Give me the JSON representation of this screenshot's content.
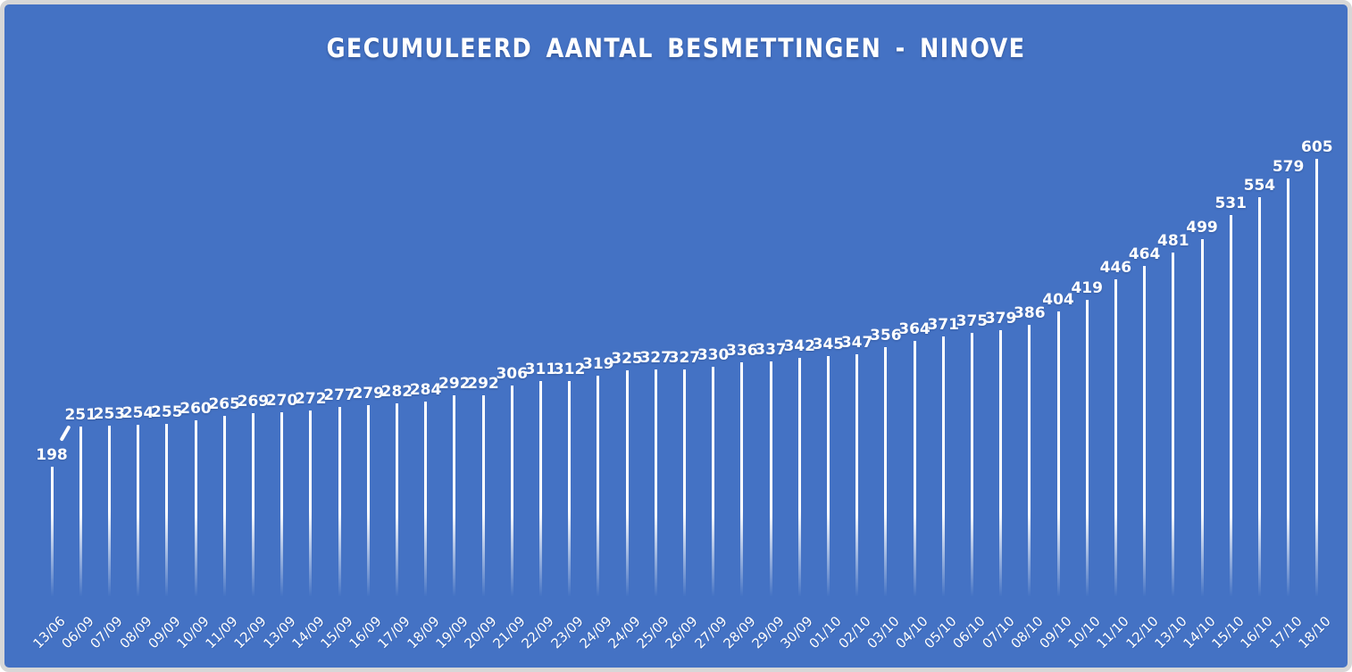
{
  "title": "GECUMULEERD AANTAL BESMETTINGEN - NINOVE",
  "colors": {
    "background": "#4472C4",
    "border": "#D7D7D7",
    "bar": "#FFFFFF",
    "text": "#FFFFFF"
  },
  "chart_data": {
    "type": "bar",
    "title": "GECUMULEERD AANTAL BESMETTINGEN - NINOVE",
    "categories": [
      "13/06",
      "06/09",
      "07/09",
      "08/09",
      "09/09",
      "10/09",
      "11/09",
      "12/09",
      "13/09",
      "14/09",
      "15/09",
      "16/09",
      "17/09",
      "18/09",
      "19/09",
      "20/09",
      "21/09",
      "22/09",
      "23/09",
      "24/09",
      "24/09",
      "25/09",
      "26/09",
      "27/09",
      "28/09",
      "29/09",
      "30/09",
      "01/10",
      "02/10",
      "03/10",
      "04/10",
      "05/10",
      "06/10",
      "07/10",
      "08/10",
      "09/10",
      "10/10",
      "11/10",
      "12/10",
      "13/10",
      "14/10",
      "15/10",
      "16/10",
      "17/10",
      "18/10"
    ],
    "values": [
      198,
      251,
      253,
      254,
      255,
      260,
      265,
      269,
      270,
      272,
      277,
      279,
      282,
      284,
      292,
      292,
      306,
      311,
      312,
      319,
      325,
      327,
      327,
      330,
      336,
      337,
      342,
      345,
      347,
      356,
      364,
      371,
      375,
      379,
      386,
      404,
      419,
      446,
      464,
      481,
      499,
      531,
      554,
      579,
      605
    ],
    "xlabel": "",
    "ylabel": "",
    "ylim": [
      0,
      650
    ],
    "grid": false,
    "legend_position": "none",
    "data_labels": true,
    "x_tick_rotation": -45,
    "bar_style": "thin white needle bars fading to background at base",
    "axis_break_mark_between": [
      "13/06",
      "06/09"
    ]
  }
}
